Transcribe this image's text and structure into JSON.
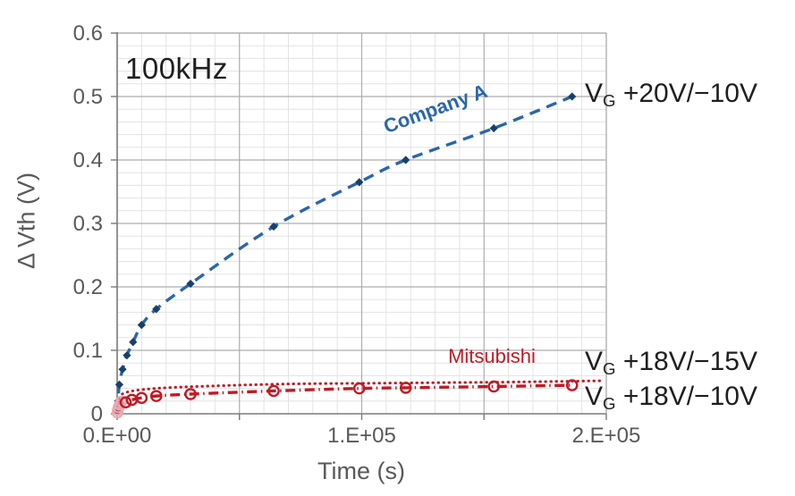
{
  "chart_data": {
    "type": "line",
    "xlabel": "Time (s)",
    "ylabel": "Δ Vth (V)",
    "xlim": [
      0,
      200000
    ],
    "ylim": [
      0,
      0.6
    ],
    "grid": {
      "x_minor_step": 10000,
      "x_major_step": 50000,
      "y_minor_step": 0.02,
      "y_major_step": 0.1,
      "grid_on": true
    },
    "x_ticks": [
      {
        "value": 0,
        "label": "0.E+00"
      },
      {
        "value": 100000,
        "label": "1.E+05"
      },
      {
        "value": 200000,
        "label": "2.E+05"
      }
    ],
    "y_ticks": [
      {
        "value": 0,
        "label": "0"
      },
      {
        "value": 0.1,
        "label": "0.1"
      },
      {
        "value": 0.2,
        "label": "0.2"
      },
      {
        "value": 0.3,
        "label": "0.3"
      },
      {
        "value": 0.4,
        "label": "0.4"
      },
      {
        "value": 0.5,
        "label": "0.5"
      },
      {
        "value": 0.6,
        "label": "0.6"
      }
    ],
    "series": [
      {
        "name": "Company A",
        "condition": "VG +20V/-10V",
        "style": "dashed",
        "marker": "diamond",
        "color": "#2b66a8",
        "marker_color": "#17406b",
        "x": [
          100,
          400,
          900,
          2200,
          4000,
          6500,
          10000,
          16000,
          30000,
          64000,
          99000,
          118000,
          154000,
          186000
        ],
        "y": [
          0.004,
          0.02,
          0.046,
          0.07,
          0.092,
          0.113,
          0.14,
          0.165,
          0.205,
          0.295,
          0.365,
          0.4,
          0.45,
          0.5
        ]
      },
      {
        "name": "Mitsubishi",
        "condition": "VG +18V/-15V",
        "style": "dotted",
        "marker": "none",
        "color": "#c11a24",
        "x": [
          150,
          600,
          1200,
          2500,
          5000,
          10000,
          20000,
          40000,
          70000,
          100000,
          130000,
          160000,
          198000
        ],
        "y": [
          0.008,
          0.022,
          0.028,
          0.032,
          0.035,
          0.038,
          0.041,
          0.044,
          0.047,
          0.048,
          0.049,
          0.05,
          0.052
        ]
      },
      {
        "name": "Mitsubishi",
        "condition": "VG +18V/-10V",
        "style": "dashdot",
        "marker": "circle",
        "color": "#c11a24",
        "x": [
          300,
          800,
          1800,
          3500,
          6000,
          10000,
          16000,
          30000,
          64000,
          99000,
          118000,
          154000,
          186000
        ],
        "y": [
          0.004,
          0.009,
          0.014,
          0.018,
          0.022,
          0.025,
          0.028,
          0.031,
          0.036,
          0.04,
          0.041,
          0.043,
          0.045
        ],
        "faint_marker_color": "#eba8b0",
        "faint_markers": {
          "x": [
            120,
            300,
            600,
            1000,
            1700
          ],
          "y": [
            0.002,
            0.006,
            0.01,
            0.014,
            0.019
          ]
        }
      }
    ],
    "annotations": {
      "freq": {
        "text": "100kHz"
      },
      "company_a": {
        "text": "Company A"
      },
      "mitsubishi": {
        "text": "Mitsubishi"
      },
      "vg_labels": [
        {
          "pre": "V",
          "sub": "G",
          "post": " +20V/−10V",
          "anchor_v": 0.5
        },
        {
          "pre": "V",
          "sub": "G",
          "post": " +18V/−15V",
          "anchor_v": 0.078
        },
        {
          "pre": "V",
          "sub": "G",
          "post": " +18V/−10V",
          "anchor_v": 0.022
        }
      ]
    },
    "colors": {
      "grid_minor": "#e3e3e3",
      "grid_major": "#adadad",
      "axis": "#7a7a7a",
      "tick_text": "#595959",
      "annotation_text": "#1f1f1f"
    }
  }
}
